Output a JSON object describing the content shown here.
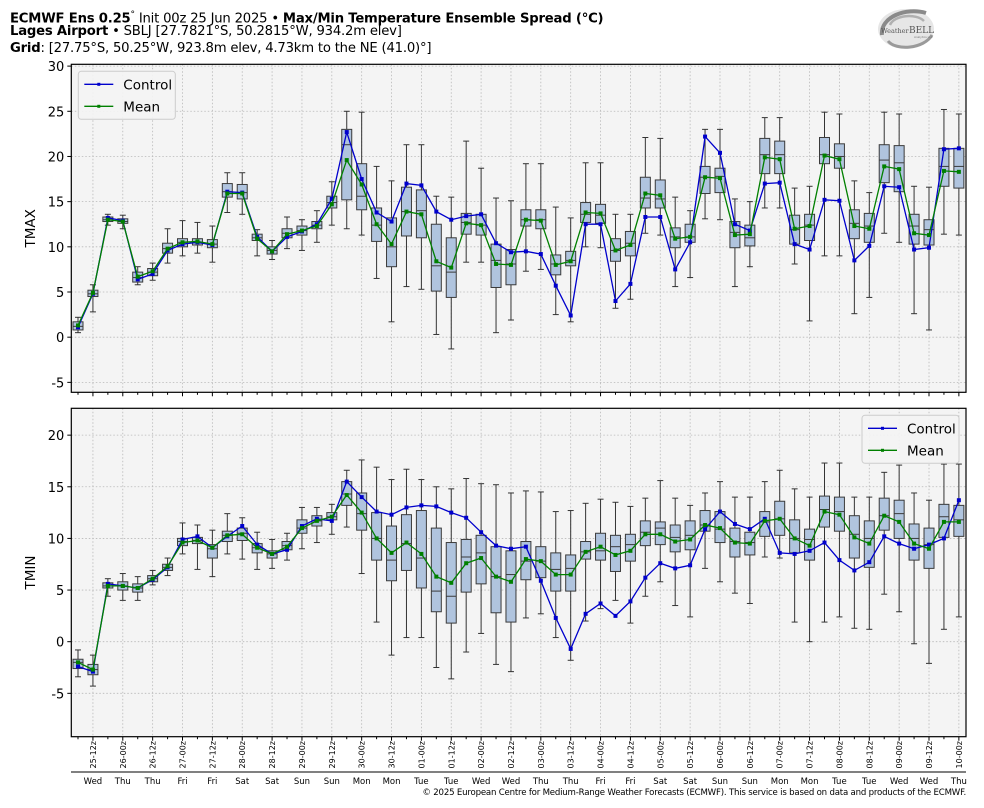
{
  "header": {
    "line1_bold_a": "ECMWF Ens 0.25",
    "line1_deg": "°",
    "line1_init": " Init 00z 25 Jun 2025 • ",
    "line1_bold_b": "Max/Min Temperature Ensemble Spread (°C)",
    "line2_bold": "Lages Airport",
    "line2_rest": " • SBLJ [27.7821°S, 50.2815°W, 934.2m elev]",
    "line3_bold": "Grid",
    "line3_rest": ": [27.75°S, 50.25°W, 923.8m elev, 4.73km to the NE (41.0)°]"
  },
  "logo": {
    "text_a": "Weather",
    "text_b": "BELL",
    "text_c": "Analytics LLC"
  },
  "copyright": "© 2025 European Centre for Medium-Range Weather Forecasts (ECMWF). This service is based on data and products of the ECMWF.",
  "colors": {
    "control": "#0000cc",
    "mean": "#008000",
    "box_fill": "#b0c4de",
    "box_edge": "#3a3a3a",
    "plot_bg": "#f4f4f4",
    "grid": "#b8b8b8"
  },
  "chart_data": [
    {
      "type": "box",
      "ylabel": "TMAX",
      "ylim": [
        -6.1,
        30.2
      ],
      "yticks": [
        -5,
        0,
        5,
        10,
        15,
        20,
        25,
        30
      ],
      "grid": true,
      "legend": {
        "placement": "top-left",
        "entries": [
          "Control",
          "Mean"
        ]
      },
      "x_step_hours": 6,
      "control": [
        1.1,
        4.8,
        13.2,
        12.9,
        6.4,
        7.0,
        9.6,
        10.3,
        10.5,
        10.2,
        16.1,
        16.0,
        11.1,
        9.5,
        11.1,
        11.7,
        12.5,
        15.3,
        22.7,
        17.5,
        13.8,
        12.8,
        17.0,
        16.8,
        13.9,
        13.0,
        13.4,
        13.6,
        10.4,
        9.4,
        9.5,
        9.2,
        5.7,
        2.4,
        12.5,
        12.5,
        4.0,
        5.9,
        13.3,
        13.3,
        7.5,
        10.5,
        22.2,
        20.4,
        12.5,
        11.8,
        17.0,
        17.1,
        10.3,
        9.7,
        15.2,
        15.1,
        8.5,
        10.1,
        16.7,
        16.6,
        9.7,
        9.9,
        20.8,
        20.9
      ],
      "mean": [
        1.3,
        4.9,
        13.0,
        12.8,
        6.7,
        7.3,
        9.8,
        10.5,
        10.6,
        10.3,
        15.9,
        15.9,
        10.9,
        9.5,
        11.4,
        11.8,
        12.3,
        14.7,
        19.6,
        16.9,
        12.5,
        10.3,
        13.9,
        13.6,
        8.4,
        7.7,
        12.6,
        12.4,
        8.1,
        8.0,
        13.0,
        12.9,
        8.0,
        8.4,
        13.8,
        13.7,
        9.6,
        10.2,
        15.9,
        15.7,
        10.9,
        11.1,
        17.7,
        17.6,
        11.3,
        11.4,
        19.9,
        19.7,
        12.0,
        12.3,
        20.1,
        19.7,
        12.3,
        12.0,
        18.9,
        18.6,
        11.5,
        11.3,
        18.4,
        18.3
      ],
      "boxes": [
        [
          0.5,
          0.8,
          1.2,
          1.7,
          2.2
        ],
        [
          2.8,
          4.5,
          4.8,
          5.2,
          5.8
        ],
        [
          12.4,
          12.8,
          13.0,
          13.3,
          13.6
        ],
        [
          12.0,
          12.6,
          12.8,
          13.1,
          13.5
        ],
        [
          5.8,
          6.1,
          6.6,
          7.2,
          7.8
        ],
        [
          6.3,
          6.8,
          7.2,
          7.6,
          8.2
        ],
        [
          8.2,
          9.3,
          9.8,
          10.4,
          12.0
        ],
        [
          9.0,
          10.0,
          10.5,
          10.9,
          12.9
        ],
        [
          9.3,
          10.2,
          10.5,
          10.9,
          12.7
        ],
        [
          8.3,
          9.9,
          10.3,
          10.8,
          12.3
        ],
        [
          13.8,
          15.5,
          16.1,
          17.0,
          18.2
        ],
        [
          13.6,
          15.3,
          16.0,
          16.9,
          18.2
        ],
        [
          9.0,
          10.7,
          11.0,
          11.4,
          11.9
        ],
        [
          8.6,
          9.2,
          9.6,
          10.0,
          10.7
        ],
        [
          9.8,
          11.0,
          11.5,
          12.0,
          13.3
        ],
        [
          9.6,
          11.3,
          11.8,
          12.3,
          13.0
        ],
        [
          10.5,
          12.0,
          12.4,
          12.8,
          14.0
        ],
        [
          12.4,
          14.3,
          14.9,
          15.6,
          17.2
        ],
        [
          12.0,
          15.2,
          21.3,
          23.0,
          25.0
        ],
        [
          11.3,
          14.1,
          15.6,
          19.2,
          24.9
        ],
        [
          6.5,
          10.6,
          12.4,
          14.3,
          18.9
        ],
        [
          1.7,
          7.8,
          10.0,
          13.2,
          17.3
        ],
        [
          5.6,
          11.2,
          13.9,
          16.6,
          21.3
        ],
        [
          5.3,
          11.0,
          14.0,
          16.3,
          21.3
        ],
        [
          0.3,
          5.1,
          7.9,
          12.5,
          15.6
        ],
        [
          -1.3,
          4.4,
          7.2,
          11.0,
          15.5
        ],
        [
          8.3,
          11.4,
          12.7,
          13.7,
          21.7
        ],
        [
          8.3,
          11.3,
          12.4,
          13.6,
          18.7
        ],
        [
          0.5,
          5.5,
          8.5,
          10.3,
          15.4
        ],
        [
          1.9,
          5.8,
          8.1,
          9.7,
          15.1
        ],
        [
          7.3,
          12.3,
          13.0,
          14.1,
          19.2
        ],
        [
          7.5,
          12.0,
          13.0,
          14.1,
          19.2
        ],
        [
          2.5,
          6.9,
          8.1,
          9.1,
          14.4
        ],
        [
          1.7,
          7.9,
          8.5,
          9.5,
          13.2
        ],
        [
          10.0,
          12.7,
          13.6,
          14.9,
          19.3
        ],
        [
          9.9,
          12.6,
          13.5,
          14.7,
          19.3
        ],
        [
          3.2,
          8.4,
          9.6,
          10.9,
          13.6
        ],
        [
          4.2,
          9.0,
          10.4,
          11.7,
          13.6
        ],
        [
          11.5,
          14.3,
          15.4,
          17.7,
          22.1
        ],
        [
          11.3,
          14.3,
          15.3,
          17.4,
          22.0
        ],
        [
          5.6,
          9.9,
          11.1,
          12.1,
          15.5
        ],
        [
          6.6,
          10.5,
          11.1,
          12.5,
          14.0
        ],
        [
          13.1,
          15.9,
          17.7,
          18.9,
          23.0
        ],
        [
          13.0,
          16.0,
          17.8,
          18.7,
          23.0
        ],
        [
          5.6,
          9.9,
          11.6,
          12.8,
          15.3
        ],
        [
          7.8,
          10.1,
          11.0,
          12.4,
          15.0
        ],
        [
          14.3,
          18.1,
          20.2,
          22.0,
          24.3
        ],
        [
          14.3,
          18.1,
          20.2,
          21.7,
          24.3
        ],
        [
          8.1,
          10.3,
          11.9,
          13.5,
          16.5
        ],
        [
          1.8,
          10.7,
          12.4,
          13.6,
          16.7
        ],
        [
          9.0,
          19.2,
          20.2,
          22.1,
          24.9
        ],
        [
          9.0,
          18.7,
          20.0,
          21.4,
          24.7
        ],
        [
          2.6,
          10.9,
          12.6,
          14.1,
          17.3
        ],
        [
          4.4,
          10.5,
          12.3,
          13.7,
          16.0
        ],
        [
          11.5,
          17.1,
          19.6,
          21.3,
          24.9
        ],
        [
          10.5,
          16.1,
          19.3,
          21.2,
          24.7
        ],
        [
          2.6,
          10.3,
          12.3,
          13.6,
          16.7
        ],
        [
          0.8,
          10.2,
          11.9,
          13.0,
          16.6
        ],
        [
          11.4,
          16.7,
          18.9,
          20.9,
          25.2
        ],
        [
          11.3,
          16.5,
          18.9,
          20.9,
          24.7
        ]
      ]
    },
    {
      "type": "box",
      "ylabel": "TMIN",
      "ylim": [
        -9.2,
        22.6
      ],
      "yticks": [
        -5,
        0,
        5,
        10,
        15,
        20
      ],
      "grid": true,
      "legend": {
        "placement": "top-right",
        "entries": [
          "Control",
          "Mean"
        ]
      },
      "x_step_hours": 6,
      "control": [
        -2.4,
        -2.9,
        5.6,
        5.4,
        5.2,
        6.0,
        7.2,
        9.9,
        10.2,
        9.1,
        10.2,
        11.2,
        9.4,
        8.5,
        8.9,
        11.2,
        11.9,
        11.7,
        15.5,
        14.0,
        12.6,
        12.3,
        13.0,
        13.2,
        13.1,
        12.5,
        12.0,
        10.6,
        9.3,
        9.0,
        9.2,
        5.9,
        2.3,
        -0.7,
        2.7,
        3.7,
        2.5,
        3.9,
        6.2,
        7.6,
        7.1,
        7.4,
        10.9,
        12.6,
        11.4,
        10.9,
        11.9,
        8.6,
        8.5,
        8.8,
        9.6,
        7.9,
        6.9,
        7.7,
        10.2,
        9.5,
        9.0,
        9.4,
        10.0,
        13.7
      ],
      "mean": [
        -2.0,
        -2.7,
        5.4,
        5.4,
        5.2,
        6.1,
        7.3,
        9.6,
        9.8,
        9.1,
        10.3,
        10.4,
        9.1,
        8.5,
        9.2,
        11.0,
        11.7,
        12.1,
        14.2,
        12.5,
        10.0,
        8.6,
        9.6,
        8.5,
        6.3,
        5.7,
        7.6,
        8.1,
        6.3,
        5.8,
        8.0,
        7.8,
        6.5,
        6.5,
        8.7,
        9.2,
        8.4,
        8.8,
        10.4,
        10.4,
        9.7,
        9.9,
        11.3,
        11.0,
        9.6,
        9.5,
        11.7,
        11.9,
        10.0,
        9.3,
        12.6,
        12.3,
        10.1,
        9.5,
        12.2,
        11.6,
        9.5,
        9.0,
        11.6,
        11.6
      ],
      "boxes": [
        [
          -3.4,
          -2.6,
          -2.0,
          -1.7,
          -0.8
        ],
        [
          -4.3,
          -3.2,
          -2.7,
          -2.2,
          -1.3
        ],
        [
          4.4,
          5.2,
          5.4,
          5.7,
          6.1
        ],
        [
          4.0,
          5.0,
          5.4,
          5.8,
          6.6
        ],
        [
          4.0,
          4.8,
          5.2,
          5.6,
          6.3
        ],
        [
          5.5,
          5.8,
          6.1,
          6.4,
          6.9
        ],
        [
          6.4,
          6.9,
          7.2,
          7.5,
          8.1
        ],
        [
          8.5,
          9.3,
          9.7,
          10.0,
          11.5
        ],
        [
          7.0,
          9.5,
          9.8,
          10.1,
          11.3
        ],
        [
          6.3,
          8.1,
          9.0,
          9.4,
          10.8
        ],
        [
          8.5,
          9.7,
          10.3,
          10.7,
          12.4
        ],
        [
          8.0,
          9.8,
          10.5,
          11.0,
          12.0
        ],
        [
          7.0,
          8.6,
          9.1,
          9.5,
          10.6
        ],
        [
          7.1,
          8.1,
          8.5,
          8.8,
          9.9
        ],
        [
          7.9,
          8.9,
          9.3,
          9.7,
          10.5
        ],
        [
          9.0,
          10.5,
          11.0,
          11.8,
          13.0
        ],
        [
          9.6,
          11.2,
          11.7,
          12.2,
          13.0
        ],
        [
          10.4,
          11.8,
          12.1,
          12.5,
          13.3
        ],
        [
          11.1,
          13.2,
          14.3,
          15.5,
          16.6
        ],
        [
          6.6,
          10.8,
          12.4,
          14.4,
          17.6
        ],
        [
          1.9,
          7.9,
          10.0,
          12.5,
          16.9
        ],
        [
          -1.3,
          5.9,
          7.9,
          11.2,
          15.7
        ],
        [
          0.4,
          6.9,
          9.5,
          12.3,
          16.7
        ],
        [
          0.4,
          5.2,
          8.1,
          12.7,
          15.7
        ],
        [
          -2.5,
          2.9,
          4.9,
          11.0,
          15.0
        ],
        [
          -3.6,
          1.8,
          4.4,
          9.6,
          14.8
        ],
        [
          -1.0,
          4.8,
          8.2,
          9.9,
          15.8
        ],
        [
          0.8,
          5.6,
          8.6,
          10.3,
          15.3
        ],
        [
          -2.2,
          2.8,
          6.3,
          9.2,
          15.2
        ],
        [
          -2.9,
          1.9,
          6.5,
          8.8,
          14.4
        ],
        [
          2.3,
          6.0,
          7.8,
          9.7,
          14.6
        ],
        [
          2.7,
          6.2,
          7.8,
          9.2,
          14.5
        ],
        [
          0.4,
          4.9,
          7.0,
          8.6,
          12.6
        ],
        [
          -1.8,
          4.9,
          7.1,
          8.4,
          12.7
        ],
        [
          2.0,
          8.0,
          8.7,
          9.7,
          13.4
        ],
        [
          3.2,
          7.9,
          8.8,
          10.5,
          13.8
        ],
        [
          4.0,
          6.8,
          9.2,
          10.3,
          13.5
        ],
        [
          1.8,
          7.8,
          9.4,
          10.4,
          13.1
        ],
        [
          4.4,
          9.3,
          10.6,
          11.7,
          13.9
        ],
        [
          5.8,
          9.4,
          11.0,
          11.6,
          15.6
        ],
        [
          3.5,
          8.7,
          10.1,
          11.3,
          13.9
        ],
        [
          2.4,
          8.9,
          10.3,
          11.7,
          13.2
        ],
        [
          7.1,
          10.7,
          11.3,
          12.7,
          14.4
        ],
        [
          5.8,
          9.6,
          10.9,
          12.6,
          15.5
        ],
        [
          4.7,
          8.2,
          9.7,
          11.0,
          14.0
        ],
        [
          3.7,
          8.4,
          9.6,
          10.6,
          14.0
        ],
        [
          8.2,
          10.2,
          11.6,
          12.6,
          15.5
        ],
        [
          8.1,
          10.3,
          11.9,
          13.6,
          16.6
        ],
        [
          1.9,
          8.6,
          10.0,
          11.8,
          14.8
        ],
        [
          0.0,
          7.9,
          9.9,
          10.9,
          14.0
        ],
        [
          1.9,
          11.1,
          12.8,
          14.1,
          17.3
        ],
        [
          2.4,
          10.7,
          12.6,
          14.0,
          17.3
        ],
        [
          1.3,
          8.1,
          10.4,
          12.2,
          14.0
        ],
        [
          1.2,
          7.2,
          10.0,
          11.7,
          14.0
        ],
        [
          4.6,
          10.8,
          12.2,
          13.9,
          16.4
        ],
        [
          2.9,
          10.0,
          12.4,
          13.7,
          17.1
        ],
        [
          -0.2,
          7.9,
          10.0,
          11.4,
          14.4
        ],
        [
          -2.1,
          7.1,
          9.4,
          11.0,
          13.7
        ],
        [
          1.2,
          10.1,
          12.1,
          13.3,
          17.2
        ],
        [
          2.4,
          10.2,
          11.8,
          13.2,
          17.2
        ]
      ]
    }
  ],
  "xaxis": {
    "tick_labels": [
      "25-12z",
      "26-00z",
      "26-12z",
      "27-00z",
      "27-12z",
      "28-00z",
      "28-12z",
      "29-00z",
      "29-12z",
      "30-00z",
      "30-12z",
      "01-00z",
      "01-12z",
      "02-00z",
      "02-12z",
      "03-00z",
      "03-12z",
      "04-00z",
      "04-12z",
      "05-00z",
      "05-12z",
      "06-00z",
      "06-12z",
      "07-00z",
      "07-12z",
      "08-00z",
      "08-12z",
      "09-00z",
      "09-12z",
      "10-00z"
    ],
    "day_labels": [
      "Wed",
      "Thu",
      "Thu",
      "Fri",
      "Fri",
      "Sat",
      "Sat",
      "Sun",
      "Sun",
      "Mon",
      "Mon",
      "Tue",
      "Tue",
      "Wed",
      "Wed",
      "Thu",
      "Thu",
      "Fri",
      "Fri",
      "Sat",
      "Sat",
      "Sun",
      "Sun",
      "Mon",
      "Mon",
      "Tue",
      "Tue",
      "Wed",
      "Wed",
      "Thu"
    ]
  }
}
